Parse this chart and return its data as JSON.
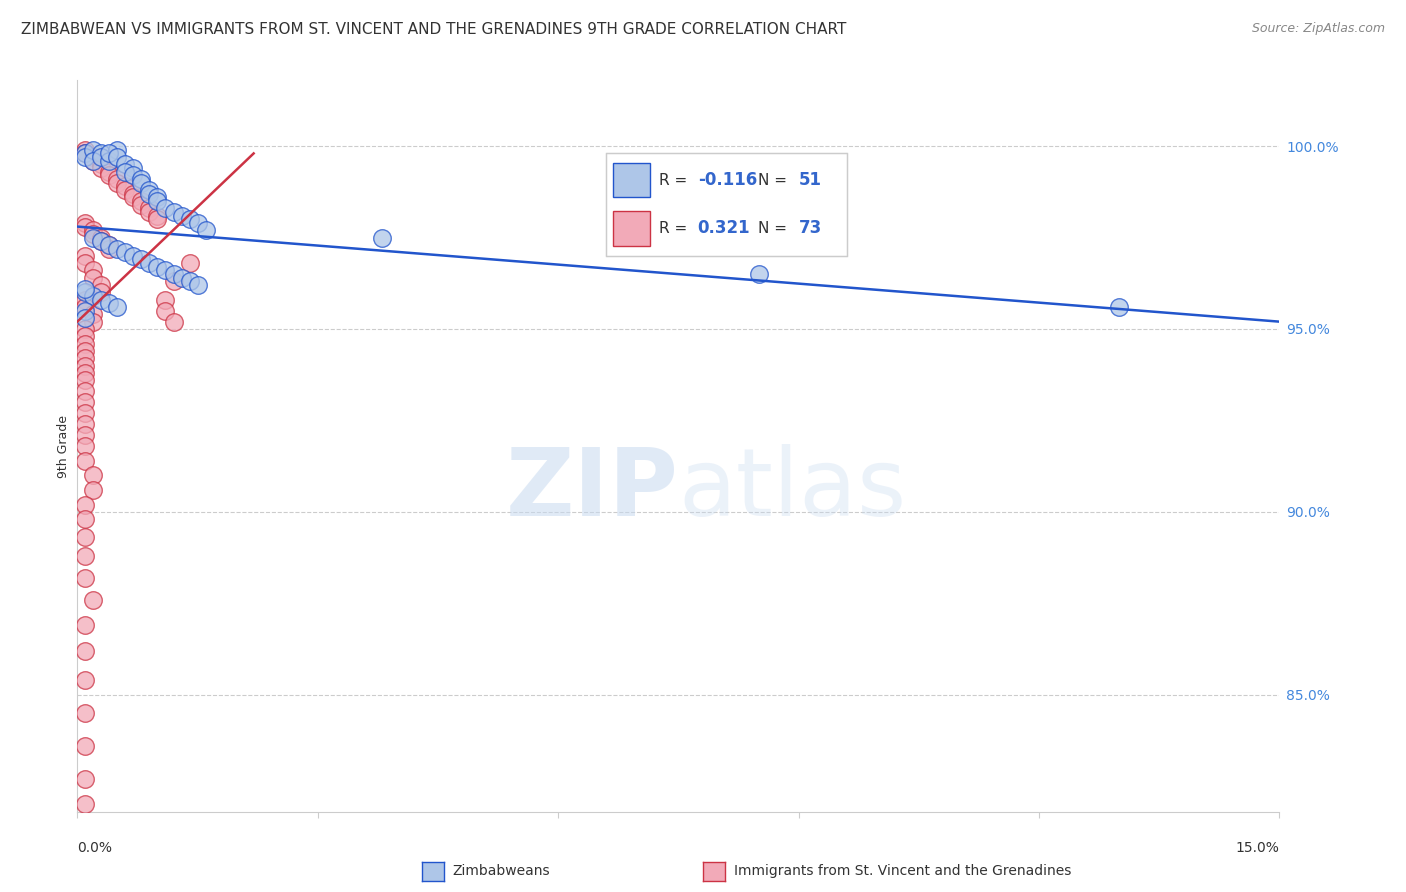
{
  "title": "ZIMBABWEAN VS IMMIGRANTS FROM ST. VINCENT AND THE GRENADINES 9TH GRADE CORRELATION CHART",
  "source": "Source: ZipAtlas.com",
  "ylabel": "9th Grade",
  "ytick_labels": [
    "100.0%",
    "95.0%",
    "90.0%",
    "85.0%"
  ],
  "ytick_values": [
    1.0,
    0.95,
    0.9,
    0.85
  ],
  "xlim": [
    0.0,
    0.15
  ],
  "ylim": [
    0.818,
    1.018
  ],
  "legend_R_blue": "-0.116",
  "legend_N_blue": "51",
  "legend_R_pink": "0.321",
  "legend_N_pink": "73",
  "blue_color": "#aec6e8",
  "pink_color": "#f2aab8",
  "blue_line_color": "#2255cc",
  "pink_line_color": "#cc3344",
  "blue_line": [
    [
      0.0,
      0.978
    ],
    [
      0.15,
      0.952
    ]
  ],
  "pink_line": [
    [
      0.0,
      0.952
    ],
    [
      0.022,
      0.998
    ]
  ],
  "background_color": "#ffffff",
  "grid_color": "#cccccc",
  "title_fontsize": 11,
  "axis_label_fontsize": 9,
  "tick_fontsize": 10,
  "blue_pts": [
    [
      0.001,
      0.998
    ],
    [
      0.001,
      0.997
    ],
    [
      0.002,
      0.999
    ],
    [
      0.003,
      0.998
    ],
    [
      0.002,
      0.996
    ],
    [
      0.003,
      0.997
    ],
    [
      0.004,
      0.996
    ],
    [
      0.005,
      0.999
    ],
    [
      0.004,
      0.998
    ],
    [
      0.005,
      0.997
    ],
    [
      0.006,
      0.995
    ],
    [
      0.007,
      0.994
    ],
    [
      0.006,
      0.993
    ],
    [
      0.007,
      0.992
    ],
    [
      0.008,
      0.991
    ],
    [
      0.008,
      0.99
    ],
    [
      0.009,
      0.988
    ],
    [
      0.009,
      0.987
    ],
    [
      0.01,
      0.986
    ],
    [
      0.01,
      0.985
    ],
    [
      0.011,
      0.983
    ],
    [
      0.012,
      0.982
    ],
    [
      0.013,
      0.981
    ],
    [
      0.014,
      0.98
    ],
    [
      0.015,
      0.979
    ],
    [
      0.016,
      0.977
    ],
    [
      0.002,
      0.975
    ],
    [
      0.003,
      0.974
    ],
    [
      0.004,
      0.973
    ],
    [
      0.005,
      0.972
    ],
    [
      0.006,
      0.971
    ],
    [
      0.007,
      0.97
    ],
    [
      0.008,
      0.969
    ],
    [
      0.009,
      0.968
    ],
    [
      0.01,
      0.967
    ],
    [
      0.011,
      0.966
    ],
    [
      0.012,
      0.965
    ],
    [
      0.013,
      0.964
    ],
    [
      0.014,
      0.963
    ],
    [
      0.015,
      0.962
    ],
    [
      0.001,
      0.96
    ],
    [
      0.002,
      0.959
    ],
    [
      0.003,
      0.958
    ],
    [
      0.004,
      0.957
    ],
    [
      0.005,
      0.956
    ],
    [
      0.001,
      0.955
    ],
    [
      0.038,
      0.975
    ],
    [
      0.085,
      0.965
    ],
    [
      0.13,
      0.956
    ],
    [
      0.001,
      0.961
    ],
    [
      0.001,
      0.953
    ]
  ],
  "pink_pts": [
    [
      0.001,
      0.999
    ],
    [
      0.001,
      0.998
    ],
    [
      0.002,
      0.997
    ],
    [
      0.002,
      0.996
    ],
    [
      0.003,
      0.995
    ],
    [
      0.003,
      0.994
    ],
    [
      0.004,
      0.993
    ],
    [
      0.004,
      0.992
    ],
    [
      0.005,
      0.991
    ],
    [
      0.005,
      0.99
    ],
    [
      0.006,
      0.989
    ],
    [
      0.006,
      0.988
    ],
    [
      0.007,
      0.987
    ],
    [
      0.007,
      0.986
    ],
    [
      0.008,
      0.985
    ],
    [
      0.008,
      0.984
    ],
    [
      0.009,
      0.983
    ],
    [
      0.009,
      0.982
    ],
    [
      0.01,
      0.981
    ],
    [
      0.01,
      0.98
    ],
    [
      0.001,
      0.979
    ],
    [
      0.001,
      0.978
    ],
    [
      0.002,
      0.977
    ],
    [
      0.002,
      0.976
    ],
    [
      0.003,
      0.975
    ],
    [
      0.003,
      0.974
    ],
    [
      0.004,
      0.973
    ],
    [
      0.004,
      0.972
    ],
    [
      0.001,
      0.97
    ],
    [
      0.001,
      0.968
    ],
    [
      0.002,
      0.966
    ],
    [
      0.002,
      0.964
    ],
    [
      0.003,
      0.962
    ],
    [
      0.003,
      0.96
    ],
    [
      0.001,
      0.958
    ],
    [
      0.001,
      0.956
    ],
    [
      0.002,
      0.954
    ],
    [
      0.002,
      0.952
    ],
    [
      0.001,
      0.95
    ],
    [
      0.001,
      0.948
    ],
    [
      0.001,
      0.946
    ],
    [
      0.001,
      0.944
    ],
    [
      0.001,
      0.942
    ],
    [
      0.001,
      0.94
    ],
    [
      0.001,
      0.938
    ],
    [
      0.001,
      0.936
    ],
    [
      0.001,
      0.933
    ],
    [
      0.001,
      0.93
    ],
    [
      0.001,
      0.927
    ],
    [
      0.001,
      0.924
    ],
    [
      0.001,
      0.921
    ],
    [
      0.001,
      0.918
    ],
    [
      0.001,
      0.914
    ],
    [
      0.002,
      0.91
    ],
    [
      0.002,
      0.906
    ],
    [
      0.001,
      0.902
    ],
    [
      0.001,
      0.898
    ],
    [
      0.001,
      0.893
    ],
    [
      0.001,
      0.888
    ],
    [
      0.001,
      0.882
    ],
    [
      0.002,
      0.876
    ],
    [
      0.001,
      0.869
    ],
    [
      0.001,
      0.862
    ],
    [
      0.001,
      0.854
    ],
    [
      0.001,
      0.845
    ],
    [
      0.001,
      0.836
    ],
    [
      0.001,
      0.827
    ],
    [
      0.001,
      0.82
    ],
    [
      0.014,
      0.968
    ],
    [
      0.012,
      0.963
    ],
    [
      0.011,
      0.958
    ],
    [
      0.011,
      0.955
    ],
    [
      0.012,
      0.952
    ]
  ]
}
